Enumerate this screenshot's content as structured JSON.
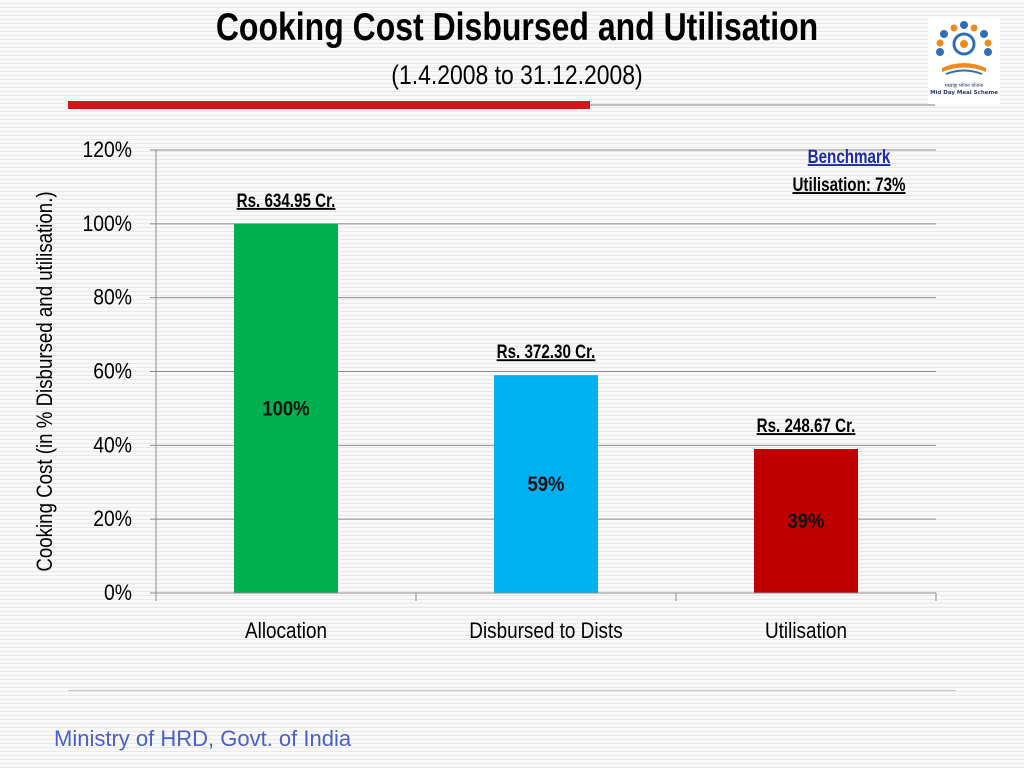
{
  "slide": {
    "title": "Cooking Cost Disbursed and Utilisation",
    "subtitle": "(1.4.2008 to 31.12.2008)",
    "footer": "Ministry of HRD, Govt. of India",
    "logo": {
      "icon": "mid-day-meal-scheme-logo",
      "text_hindi": "मध्याह्न भोजन योजना",
      "text_english": "Mid Day Meal Scheme"
    },
    "colors": {
      "title_rule": "#cc1a1a",
      "footer_text": "#4a5fc9"
    }
  },
  "chart_data": {
    "type": "bar",
    "title": "",
    "xlabel": "",
    "ylabel": "Cooking Cost (in % Disbursed and utilisation.)",
    "ylim": [
      0,
      120
    ],
    "yticks": [
      0,
      20,
      40,
      60,
      80,
      100,
      120
    ],
    "ytick_labels": [
      "0%",
      "20%",
      "40%",
      "60%",
      "80%",
      "100%",
      "120%"
    ],
    "categories": [
      "Allocation",
      "Disbursed to Dists",
      "Utilisation"
    ],
    "values": [
      100,
      59,
      39
    ],
    "value_labels": [
      "100%",
      "59%",
      "39%"
    ],
    "amount_labels": [
      "Rs. 634.95 Cr.",
      "Rs. 372.30 Cr.",
      "Rs. 248.67 Cr."
    ],
    "bar_colors": [
      "#00b050",
      "#00b0f0",
      "#c00000"
    ],
    "grid": true,
    "annotation": {
      "line1": "Benchmark",
      "line2": "Utilisation: 73%",
      "position": "top-right"
    }
  }
}
